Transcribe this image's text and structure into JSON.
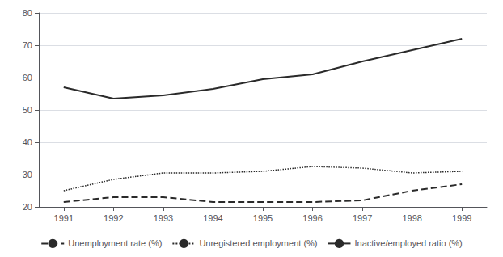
{
  "chart_data": {
    "type": "line",
    "x": [
      1991,
      1992,
      1993,
      1994,
      1995,
      1996,
      1997,
      1998,
      1999
    ],
    "series": [
      {
        "name": "Unemployment rate (%)",
        "color": "#2a2a2a",
        "line_style": "dashed",
        "values": [
          21.5,
          23.0,
          23.0,
          21.5,
          21.5,
          21.5,
          22.0,
          25.0,
          27.0
        ]
      },
      {
        "name": "Unregistered employment (%)",
        "color": "#2a2a2a",
        "line_style": "dotted",
        "values": [
          25.0,
          28.5,
          30.5,
          30.5,
          31.0,
          32.5,
          32.0,
          30.5,
          31.0
        ]
      },
      {
        "name": "Inactive/employed ratio (%)",
        "color": "#2a2a2a",
        "line_style": "solid",
        "values": [
          57.0,
          53.5,
          54.5,
          56.5,
          59.5,
          61.0,
          65.0,
          68.5,
          72.0
        ]
      }
    ],
    "xlim": [
      1990.5,
      1999.5
    ],
    "xticks": [
      1991,
      1992,
      1993,
      1994,
      1995,
      1996,
      1997,
      1998,
      1999
    ],
    "ylim": [
      20,
      80
    ],
    "yticks": [
      20,
      30,
      40,
      50,
      60,
      70,
      80
    ],
    "grid": true,
    "legend": "bottom"
  }
}
